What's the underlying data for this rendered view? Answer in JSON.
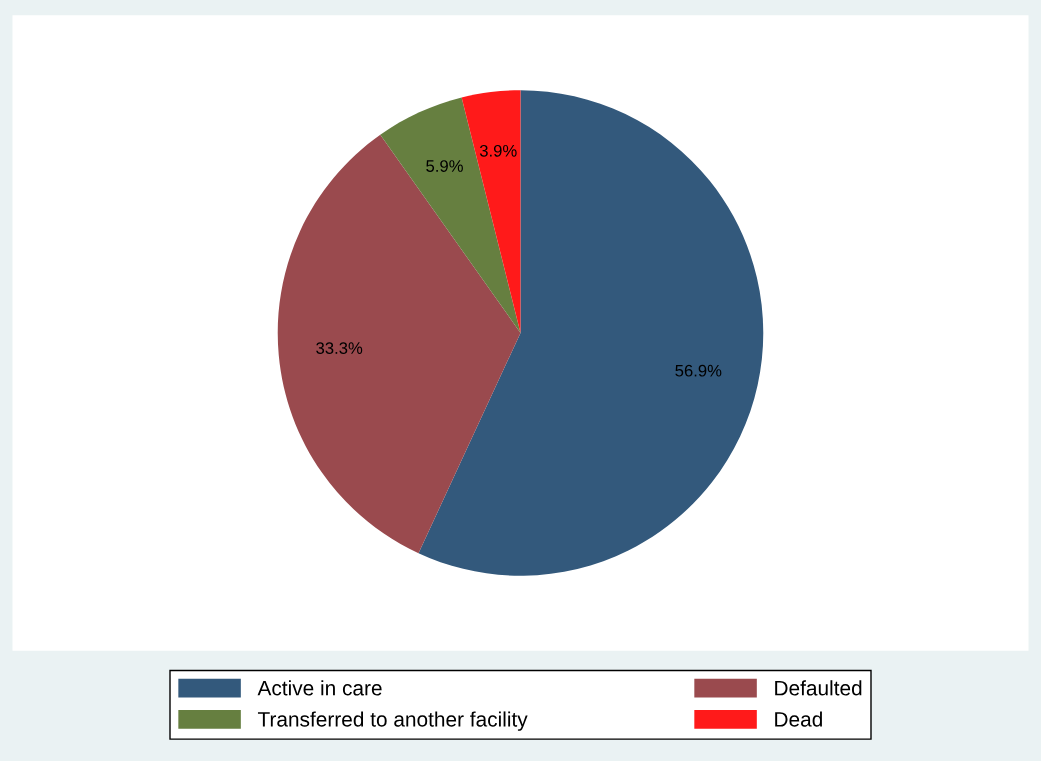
{
  "chart_data": {
    "type": "pie",
    "categories": [
      "Active in care",
      "Defaulted",
      "Transferred to another facility",
      "Dead"
    ],
    "values": [
      56.9,
      33.3,
      5.9,
      3.9
    ],
    "colors": [
      "#33597c",
      "#9a4a4e",
      "#667f40",
      "#ff1a1a"
    ],
    "value_labels": [
      "56.9%",
      "33.3%",
      "5.9%",
      "3.9%"
    ],
    "legend": "bottom"
  }
}
